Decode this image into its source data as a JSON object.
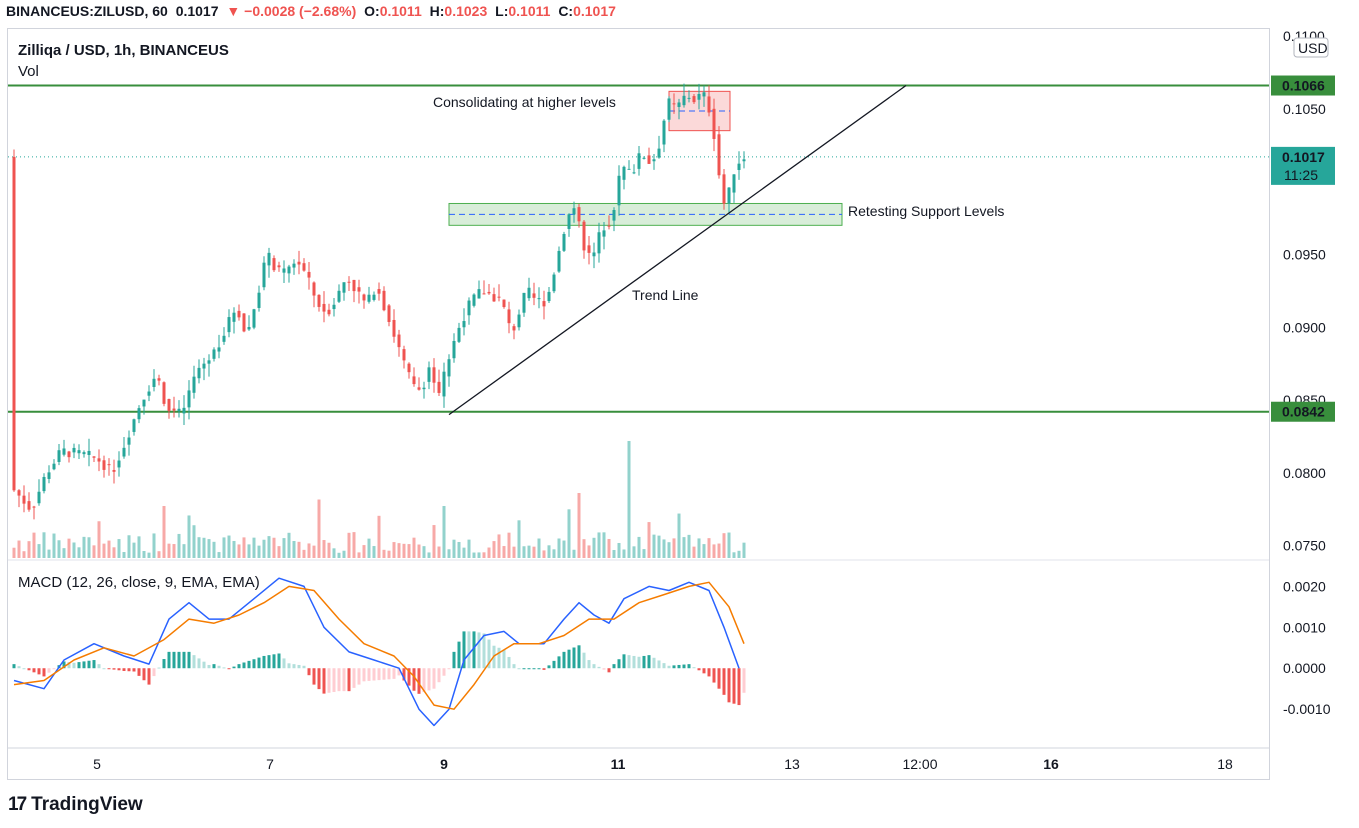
{
  "header": {
    "symbol": "BINANCEUS:ZILUSD, 60",
    "last": "0.1017",
    "change": "▼ −0.0028 (−2.68%)",
    "o_label": "O:",
    "o_value": "0.1011",
    "h_label": "H:",
    "h_value": "0.1023",
    "l_label": "L:",
    "l_value": "0.1011",
    "c_label": "C:",
    "c_value": "0.1017"
  },
  "legend": {
    "title": "Zilliqa / USD, 1h, BINANCEUS",
    "vol": "Vol",
    "macd": "MACD (12, 26, close, 9, EMA, EMA)"
  },
  "brand": {
    "logo": "17",
    "name": "TradingView"
  },
  "colors": {
    "up": "#26a69a",
    "down": "#ef5350",
    "level_line": "#388e3c",
    "macd": "#2962ff",
    "signal": "#f57c00"
  },
  "chart_data": {
    "type": "candlestick",
    "currency": "USD",
    "price_axis": {
      "ticks": [
        "0.1100",
        "0.1050",
        "0.0950",
        "0.0900",
        "0.0850",
        "0.0800",
        "0.0750"
      ],
      "range": [
        0.0745,
        0.11
      ]
    },
    "time_axis": {
      "ticks": [
        "5",
        "7",
        "9",
        "11",
        "13",
        "12:00",
        "16",
        "18"
      ]
    },
    "levels": [
      {
        "name": "resistance",
        "value": 0.1066,
        "label": "0.1066"
      },
      {
        "name": "support",
        "value": 0.0842,
        "label": "0.0842"
      }
    ],
    "current_price": {
      "value": 0.1017,
      "label": "0.1017",
      "countdown": "11:25"
    },
    "annotations": {
      "consolidation": "Consolidating at higher levels",
      "support_zone": "Retesting Support Levels",
      "trend_line": "Trend Line"
    },
    "support_zone": {
      "from": 0.097,
      "to": 0.0985
    },
    "consolidation_zone": {
      "from": 0.1035,
      "to": 0.1062
    },
    "price_path": [
      [
        0,
        0.079
      ],
      [
        4,
        0.0775
      ],
      [
        7,
        0.08
      ],
      [
        10,
        0.0815
      ],
      [
        15,
        0.0812
      ],
      [
        18,
        0.0808
      ],
      [
        20,
        0.08
      ],
      [
        22,
        0.0815
      ],
      [
        26,
        0.085
      ],
      [
        29,
        0.0868
      ],
      [
        31,
        0.0845
      ],
      [
        34,
        0.084
      ],
      [
        37,
        0.087
      ],
      [
        40,
        0.088
      ],
      [
        43,
        0.09
      ],
      [
        45,
        0.0915
      ],
      [
        47,
        0.0893
      ],
      [
        49,
        0.092
      ],
      [
        51,
        0.095
      ],
      [
        54,
        0.0935
      ],
      [
        57,
        0.0947
      ],
      [
        59,
        0.0935
      ],
      [
        61,
        0.0918
      ],
      [
        63,
        0.091
      ],
      [
        65,
        0.092
      ],
      [
        67,
        0.0935
      ],
      [
        69,
        0.0925
      ],
      [
        71,
        0.0915
      ],
      [
        73,
        0.093
      ],
      [
        75,
        0.091
      ],
      [
        77,
        0.089
      ],
      [
        79,
        0.087
      ],
      [
        81,
        0.0855
      ],
      [
        83,
        0.0865
      ],
      [
        84,
        0.088
      ],
      [
        85,
        0.0845
      ],
      [
        86,
        0.086
      ],
      [
        88,
        0.0885
      ],
      [
        90,
        0.0905
      ],
      [
        92,
        0.0918
      ],
      [
        94,
        0.0925
      ],
      [
        96,
        0.0922
      ],
      [
        98,
        0.0918
      ],
      [
        100,
        0.0895
      ],
      [
        101,
        0.0905
      ],
      [
        103,
        0.0925
      ],
      [
        105,
        0.0918
      ],
      [
        107,
        0.0918
      ],
      [
        109,
        0.0945
      ],
      [
        111,
        0.0975
      ],
      [
        113,
        0.0985
      ],
      [
        114,
        0.096
      ],
      [
        116,
        0.0945
      ],
      [
        118,
        0.0968
      ],
      [
        120,
        0.0975
      ],
      [
        122,
        0.101
      ],
      [
        124,
        0.1005
      ],
      [
        126,
        0.102
      ],
      [
        128,
        0.1012
      ],
      [
        130,
        0.103
      ],
      [
        131,
        0.1055
      ],
      [
        133,
        0.105
      ],
      [
        135,
        0.106
      ],
      [
        137,
        0.1055
      ],
      [
        138,
        0.1062
      ],
      [
        139,
        0.1055
      ],
      [
        140,
        0.1045
      ],
      [
        141,
        0.102
      ],
      [
        142,
        0.099
      ],
      [
        143,
        0.098
      ],
      [
        144,
        0.1005
      ],
      [
        146,
        0.1017
      ]
    ],
    "volume_spikes": [
      {
        "bar": 30,
        "value": 4
      },
      {
        "bar": 61,
        "value": 4.5
      },
      {
        "bar": 86,
        "value": 4
      },
      {
        "bar": 113,
        "value": 5
      },
      {
        "bar": 123,
        "value": 9
      }
    ],
    "macd": {
      "ticks": [
        "0.0020",
        "0.0010",
        "0.0000",
        "-0.0010"
      ],
      "range": [
        -0.0019,
        0.0024
      ],
      "macd_line": [
        [
          0,
          -0.0003
        ],
        [
          6,
          -0.0005
        ],
        [
          10,
          0.0002
        ],
        [
          16,
          0.0006
        ],
        [
          22,
          0.0003
        ],
        [
          27,
          0.0001
        ],
        [
          31,
          0.0012
        ],
        [
          35,
          0.0016
        ],
        [
          39,
          0.0012
        ],
        [
          43,
          0.0012
        ],
        [
          48,
          0.0017
        ],
        [
          53,
          0.0022
        ],
        [
          58,
          0.002
        ],
        [
          62,
          0.001
        ],
        [
          67,
          0.0004
        ],
        [
          72,
          0.0002
        ],
        [
          77,
          0.0
        ],
        [
          81,
          -0.001
        ],
        [
          84,
          -0.0014
        ],
        [
          87,
          -0.001
        ],
        [
          90,
          0.0002
        ],
        [
          94,
          0.0008
        ],
        [
          98,
          0.0009
        ],
        [
          101,
          0.0006
        ],
        [
          106,
          0.0006
        ],
        [
          110,
          0.0012
        ],
        [
          113,
          0.0016
        ],
        [
          116,
          0.0013
        ],
        [
          119,
          0.0011
        ],
        [
          122,
          0.0017
        ],
        [
          127,
          0.002
        ],
        [
          131,
          0.0019
        ],
        [
          135,
          0.0021
        ],
        [
          139,
          0.0019
        ],
        [
          142,
          0.001
        ],
        [
          145,
          0.0
        ]
      ],
      "signal_line": [
        [
          0,
          -0.0004
        ],
        [
          6,
          -0.0003
        ],
        [
          12,
          0.0002
        ],
        [
          18,
          0.0005
        ],
        [
          24,
          0.0003
        ],
        [
          30,
          0.0007
        ],
        [
          35,
          0.0012
        ],
        [
          40,
          0.0011
        ],
        [
          45,
          0.0013
        ],
        [
          50,
          0.0016
        ],
        [
          55,
          0.002
        ],
        [
          60,
          0.0019
        ],
        [
          65,
          0.0012
        ],
        [
          70,
          0.0006
        ],
        [
          76,
          0.0003
        ],
        [
          80,
          -0.0002
        ],
        [
          84,
          -0.0009
        ],
        [
          88,
          -0.001
        ],
        [
          92,
          -0.0004
        ],
        [
          96,
          0.0003
        ],
        [
          100,
          0.0006
        ],
        [
          105,
          0.0006
        ],
        [
          110,
          0.0008
        ],
        [
          115,
          0.0012
        ],
        [
          120,
          0.0012
        ],
        [
          125,
          0.0016
        ],
        [
          130,
          0.0018
        ],
        [
          135,
          0.002
        ],
        [
          139,
          0.0021
        ],
        [
          143,
          0.0015
        ],
        [
          146,
          0.0006
        ]
      ]
    }
  }
}
